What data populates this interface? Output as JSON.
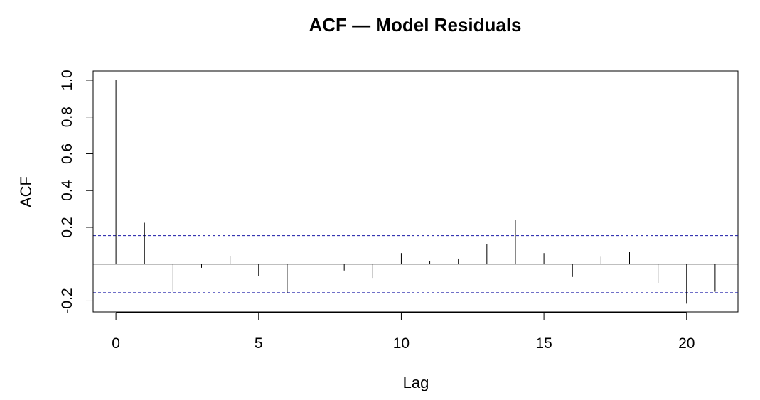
{
  "chart_data": {
    "type": "bar",
    "title": "ACF — Model Residuals",
    "xlabel": "Lag",
    "ylabel": "ACF",
    "xlim": [
      -0.8,
      21.8
    ],
    "ylim": [
      -0.26,
      1.05
    ],
    "x_ticks": [
      0,
      5,
      10,
      15,
      20
    ],
    "y_ticks": [
      -0.2,
      0.2,
      0.4,
      0.6,
      0.8,
      1.0
    ],
    "y_tick_labels": [
      "-0.2",
      "0.2",
      "0.4",
      "0.6",
      "0.8",
      "1.0"
    ],
    "grid": false,
    "lags": [
      0,
      1,
      2,
      3,
      4,
      5,
      6,
      7,
      8,
      9,
      10,
      11,
      12,
      13,
      14,
      15,
      16,
      17,
      18,
      19,
      20,
      21
    ],
    "values": [
      1.0,
      0.225,
      -0.15,
      -0.02,
      0.045,
      -0.065,
      -0.155,
      0.0,
      -0.035,
      -0.075,
      0.06,
      0.015,
      0.03,
      0.11,
      0.24,
      0.06,
      -0.07,
      0.04,
      0.065,
      -0.105,
      -0.215,
      -0.15
    ],
    "confidence_bounds": [
      0.155,
      -0.155
    ],
    "colors": {
      "bars": "#000000",
      "bounds": "#1a1aa6",
      "axes": "#000000"
    }
  }
}
